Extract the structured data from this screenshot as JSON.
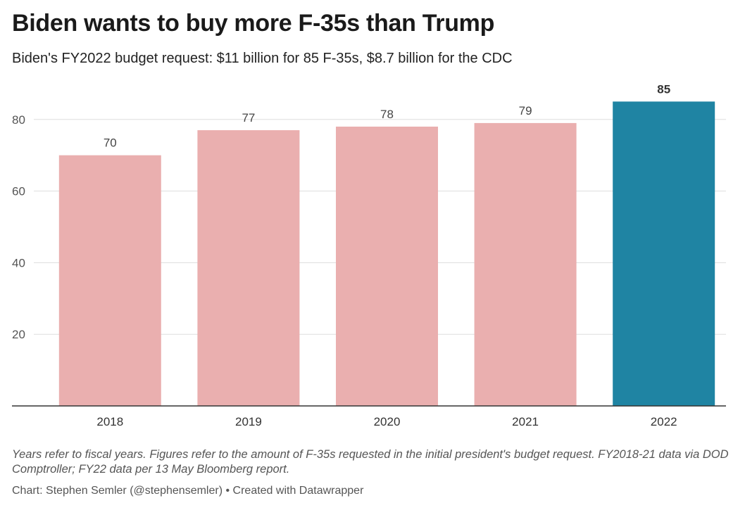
{
  "header": {
    "title": "Biden wants to buy more F-35s than Trump",
    "subtitle": "Biden's FY2022 budget request: $11 billion for 85 F-35s, $8.7 billion for the CDC"
  },
  "chart_data": {
    "type": "bar",
    "categories": [
      "2018",
      "2019",
      "2020",
      "2021",
      "2022"
    ],
    "values": [
      70,
      77,
      78,
      79,
      85
    ],
    "value_labels": [
      "70",
      "77",
      "78",
      "79",
      "85"
    ],
    "y_ticks": [
      20,
      40,
      60,
      80
    ],
    "ylim": [
      0,
      87
    ],
    "grid": true,
    "colors": {
      "default": "#eaafaf",
      "highlight": "#1f84a3",
      "grid": "#dddddd",
      "baseline": "#333333"
    },
    "highlight_index": 4
  },
  "footer": {
    "notes": "Years refer to fiscal years. Figures refer to the amount of F-35s requested in the initial president's budget request. FY2018-21 data via DOD Comptroller; FY22 data per 13 May Bloomberg report.",
    "credit": "Chart: Stephen Semler (@stephensemler) • Created with Datawrapper"
  }
}
